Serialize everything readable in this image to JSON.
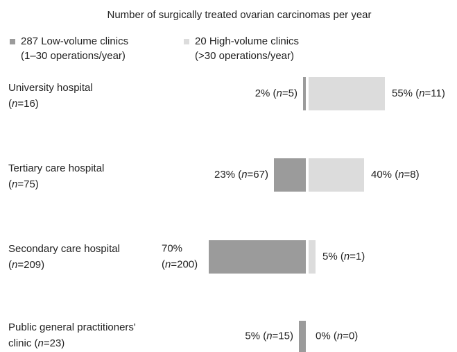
{
  "chart_data": {
    "type": "diverging-bar",
    "title": "Number of surgically treated ovarian carcinomas per year",
    "categories": [
      [
        "University hospital",
        "(n=16)"
      ],
      [
        "Tertiary care hospital",
        "(n=75)"
      ],
      [
        "Secondary care hospital",
        "(n=209)"
      ],
      [
        "Public general practitioners'",
        "clinic (n=23)"
      ]
    ],
    "series": [
      {
        "name": "287 Low-volume clinics",
        "legend_detail": "(1–30 operations/year)",
        "color": "#9b9b9b",
        "values": [
          2,
          23,
          70,
          5
        ],
        "value_labels": [
          [
            "2% (n=5)"
          ],
          [
            "23% (n=67)"
          ],
          [
            "70%",
            "(n=200)"
          ],
          [
            "5% (n=15)"
          ]
        ]
      },
      {
        "name": "20 High-volume clinics",
        "legend_detail": "(>30 operations/year)",
        "color": "#dcdcdc",
        "values": [
          55,
          40,
          5,
          0
        ],
        "value_labels": [
          [
            "55% (n=11)"
          ],
          [
            "40% (n=8)"
          ],
          [
            "5% (n=1)"
          ],
          [
            "0% (n=0)"
          ]
        ]
      }
    ]
  }
}
